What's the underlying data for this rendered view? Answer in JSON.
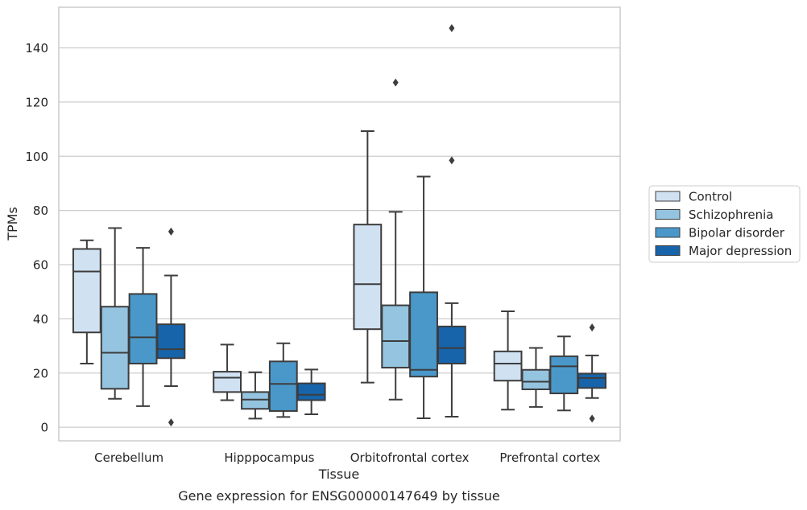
{
  "chart_data": {
    "type": "box",
    "xlabel": "Tissue",
    "ylabel": "TPMs",
    "caption": "Gene expression for ENSG00000147649 by tissue",
    "ylim": [
      -5,
      155
    ],
    "yticks": [
      0,
      20,
      40,
      60,
      80,
      100,
      120,
      140
    ],
    "grid": "horizontal",
    "legend_position": "right",
    "categories": [
      "Cerebellum",
      "Hipppocampus",
      "Orbitofrontal cortex",
      "Prefrontal cortex"
    ],
    "series": [
      {
        "name": "Control",
        "color": "#d0e1f2",
        "boxes": [
          {
            "whislo": 23.5,
            "q1": 35,
            "med": 57.5,
            "q3": 65.8,
            "whishi": 69,
            "fliers": []
          },
          {
            "whislo": 10,
            "q1": 13,
            "med": 18.3,
            "q3": 20.5,
            "whishi": 30.5,
            "fliers": []
          },
          {
            "whislo": 16.5,
            "q1": 36.2,
            "med": 52.8,
            "q3": 74.8,
            "whishi": 109.3,
            "fliers": []
          },
          {
            "whislo": 6.5,
            "q1": 17.2,
            "med": 23.5,
            "q3": 28,
            "whishi": 42.8,
            "fliers": []
          }
        ]
      },
      {
        "name": "Schizophrenia",
        "color": "#94c4df",
        "boxes": [
          {
            "whislo": 10.5,
            "q1": 14.2,
            "med": 27.5,
            "q3": 44.5,
            "whishi": 73.5,
            "fliers": []
          },
          {
            "whislo": 3.2,
            "q1": 6.8,
            "med": 10.2,
            "q3": 13,
            "whishi": 20.3,
            "fliers": []
          },
          {
            "whislo": 10.2,
            "q1": 22,
            "med": 31.8,
            "q3": 45,
            "whishi": 79.5,
            "fliers": [
              127.2
            ]
          },
          {
            "whislo": 7.5,
            "q1": 14,
            "med": 16.8,
            "q3": 21.2,
            "whishi": 29.3,
            "fliers": []
          }
        ]
      },
      {
        "name": "Bipolar disorder",
        "color": "#4a98c9",
        "boxes": [
          {
            "whislo": 7.8,
            "q1": 23.5,
            "med": 33.2,
            "q3": 49.2,
            "whishi": 66.2,
            "fliers": []
          },
          {
            "whislo": 3.8,
            "q1": 6,
            "med": 16,
            "q3": 24.3,
            "whishi": 31,
            "fliers": []
          },
          {
            "whislo": 3.3,
            "q1": 18.7,
            "med": 21.2,
            "q3": 49.8,
            "whishi": 92.5,
            "fliers": []
          },
          {
            "whislo": 6.2,
            "q1": 12.5,
            "med": 22.5,
            "q3": 26.2,
            "whishi": 33.5,
            "fliers": []
          }
        ]
      },
      {
        "name": "Major depression",
        "color": "#1764ab",
        "boxes": [
          {
            "whislo": 15.2,
            "q1": 25.5,
            "med": 28.8,
            "q3": 38,
            "whishi": 56,
            "fliers": [
              72.2,
              1.8
            ]
          },
          {
            "whislo": 4.8,
            "q1": 10,
            "med": 12,
            "q3": 16.2,
            "whishi": 21.3,
            "fliers": []
          },
          {
            "whislo": 3.9,
            "q1": 23.5,
            "med": 29.2,
            "q3": 37.2,
            "whishi": 45.8,
            "fliers": [
              147.3,
              98.5
            ]
          },
          {
            "whislo": 10.8,
            "q1": 14.5,
            "med": 18.2,
            "q3": 19.8,
            "whishi": 26.5,
            "fliers": [
              36.8,
              3.2
            ]
          }
        ]
      }
    ]
  }
}
